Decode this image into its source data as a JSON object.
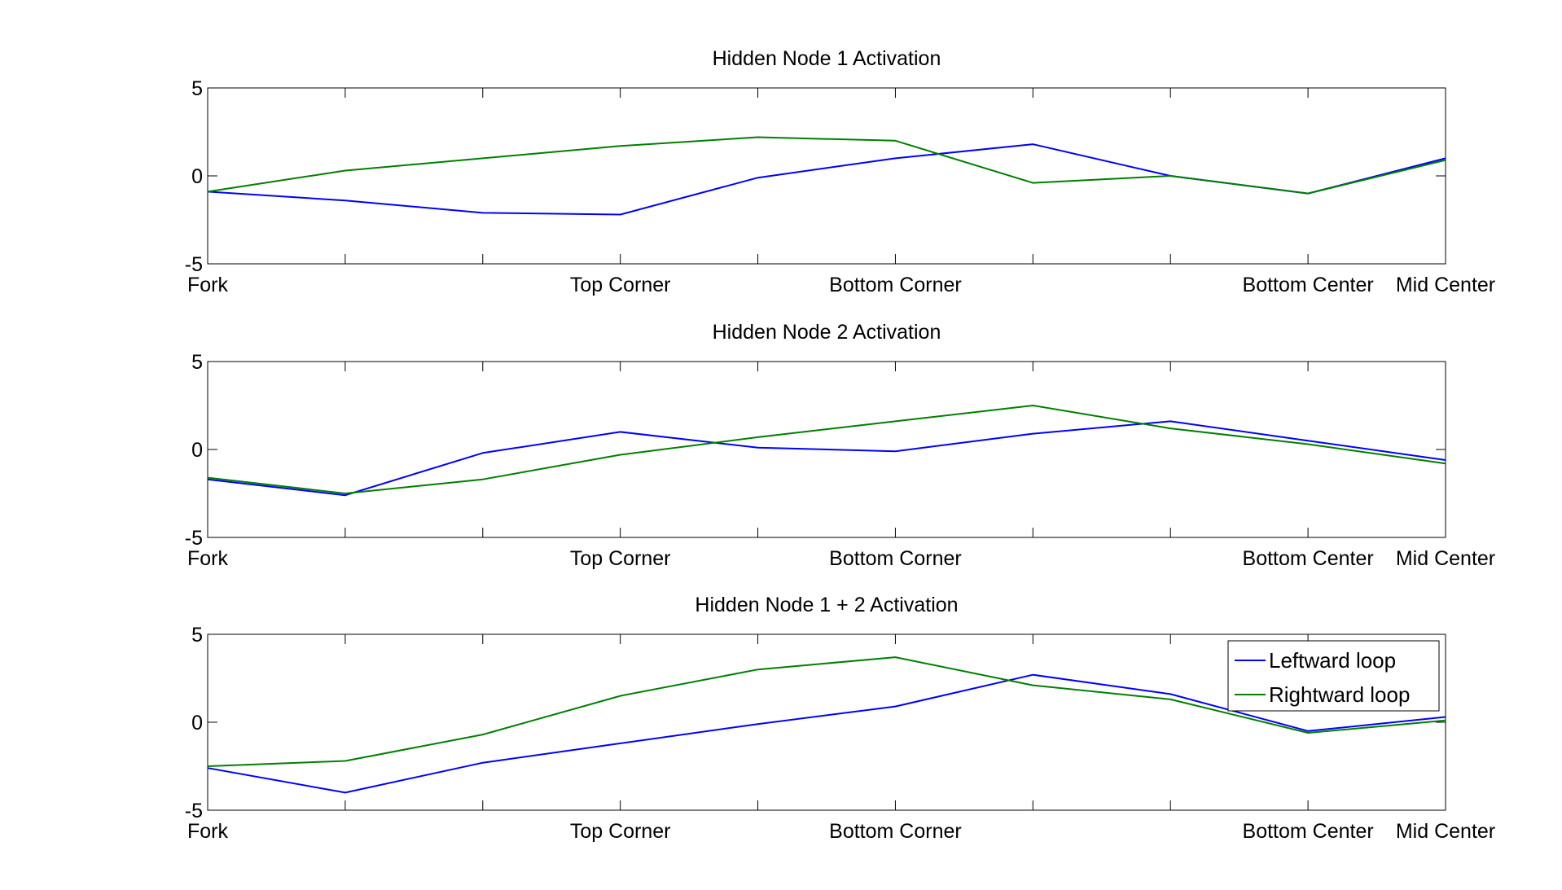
{
  "figure": {
    "background": "#ffffff",
    "panel_count": 3
  },
  "chart_data": [
    {
      "type": "line",
      "title": "Hidden Node 1 Activation",
      "xlabel": "",
      "ylabel": "",
      "x": [
        1,
        2,
        3,
        4,
        5,
        6,
        7,
        8,
        9,
        10
      ],
      "xlim": [
        1,
        10
      ],
      "ylim": [
        -5,
        5
      ],
      "yticks": [
        -5,
        0,
        5
      ],
      "ytick_labels": [
        "-5",
        "0",
        "5"
      ],
      "xtick_labels": [
        {
          "x": 1,
          "label": "Fork"
        },
        {
          "x": 4,
          "label": "Top Corner"
        },
        {
          "x": 6,
          "label": "Bottom Corner"
        },
        {
          "x": 9,
          "label": "Bottom Center"
        },
        {
          "x": 10,
          "label": "Mid Center"
        }
      ],
      "grid": false,
      "series": [
        {
          "color": "#0000ff",
          "values": [
            -0.9,
            -1.4,
            -2.1,
            -2.2,
            -0.1,
            1.0,
            1.8,
            0.0,
            -1.0,
            1.0
          ]
        },
        {
          "color": "#007f00",
          "values": [
            -0.9,
            0.3,
            1.0,
            1.7,
            2.2,
            2.0,
            -0.4,
            0.0,
            -1.0,
            0.9
          ]
        }
      ]
    },
    {
      "type": "line",
      "title": "Hidden Node 2 Activation",
      "xlabel": "",
      "ylabel": "",
      "x": [
        1,
        2,
        3,
        4,
        5,
        6,
        7,
        8,
        9,
        10
      ],
      "xlim": [
        1,
        10
      ],
      "ylim": [
        -5,
        5
      ],
      "yticks": [
        -5,
        0,
        5
      ],
      "ytick_labels": [
        "-5",
        "0",
        "5"
      ],
      "xtick_labels": [
        {
          "x": 1,
          "label": "Fork"
        },
        {
          "x": 4,
          "label": "Top Corner"
        },
        {
          "x": 6,
          "label": "Bottom Corner"
        },
        {
          "x": 9,
          "label": "Bottom Center"
        },
        {
          "x": 10,
          "label": "Mid Center"
        }
      ],
      "grid": false,
      "series": [
        {
          "color": "#0000ff",
          "values": [
            -1.7,
            -2.6,
            -0.2,
            1.0,
            0.1,
            -0.1,
            0.9,
            1.6,
            0.5,
            -0.6
          ]
        },
        {
          "color": "#007f00",
          "values": [
            -1.6,
            -2.5,
            -1.7,
            -0.3,
            0.7,
            1.6,
            2.5,
            1.2,
            0.3,
            -0.8
          ]
        }
      ]
    },
    {
      "type": "line",
      "title": "Hidden Node 1 + 2 Activation",
      "xlabel": "",
      "ylabel": "",
      "x": [
        1,
        2,
        3,
        4,
        5,
        6,
        7,
        8,
        9,
        10
      ],
      "xlim": [
        1,
        10
      ],
      "ylim": [
        -5,
        5
      ],
      "yticks": [
        -5,
        0,
        5
      ],
      "ytick_labels": [
        "-5",
        "0",
        "5"
      ],
      "xtick_labels": [
        {
          "x": 1,
          "label": "Fork"
        },
        {
          "x": 4,
          "label": "Top Corner"
        },
        {
          "x": 6,
          "label": "Bottom Corner"
        },
        {
          "x": 9,
          "label": "Bottom Center"
        },
        {
          "x": 10,
          "label": "Mid Center"
        }
      ],
      "grid": false,
      "legend": {
        "placement": "top-right"
      },
      "series": [
        {
          "name": "Leftward loop",
          "color": "#0000ff",
          "values": [
            -2.6,
            -4.0,
            -2.3,
            -1.2,
            -0.1,
            0.9,
            2.7,
            1.6,
            -0.5,
            0.3
          ]
        },
        {
          "name": "Rightward loop",
          "color": "#007f00",
          "values": [
            -2.5,
            -2.2,
            -0.7,
            1.5,
            3.0,
            3.7,
            2.1,
            1.3,
            -0.6,
            0.1
          ]
        }
      ]
    }
  ]
}
